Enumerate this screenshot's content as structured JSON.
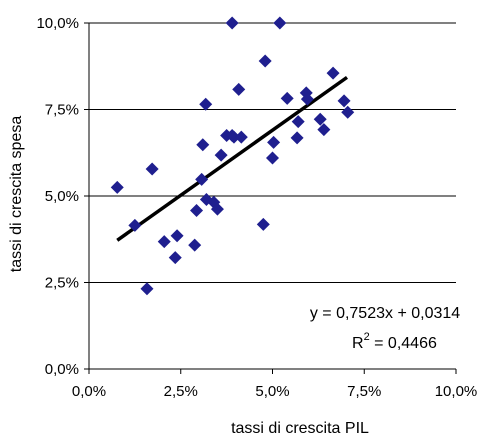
{
  "chart_data": {
    "type": "scatter",
    "xlabel": "tassi di crescita PIL",
    "ylabel": "tassi di crescita spesa",
    "xlim": [
      0,
      0.1
    ],
    "ylim": [
      0,
      0.1
    ],
    "x_ticks": [
      0,
      0.025,
      0.05,
      0.075,
      0.1
    ],
    "y_ticks": [
      0,
      0.025,
      0.05,
      0.075,
      0.1
    ],
    "x_tick_labels": [
      "0,0%",
      "2,5%",
      "5,0%",
      "7,5%",
      "10,0%"
    ],
    "y_tick_labels": [
      "0,0%",
      "2,5%",
      "5,0%",
      "7,5%",
      "10,0%"
    ],
    "grid": "horizontal",
    "marker_color": "#1f1f8f",
    "trendline_color": "#000000",
    "series": [
      {
        "x": [
          0.0077,
          0.0125,
          0.0158,
          0.0172,
          0.0205,
          0.0235,
          0.024,
          0.0288,
          0.0293,
          0.0307,
          0.031,
          0.0318,
          0.032,
          0.034,
          0.035,
          0.036,
          0.0375,
          0.039,
          0.039,
          0.0395,
          0.0408,
          0.0415,
          0.0475,
          0.048,
          0.05,
          0.0503,
          0.052,
          0.054,
          0.0567,
          0.057,
          0.0592,
          0.0595,
          0.063,
          0.064,
          0.0665,
          0.0695,
          0.0705
        ],
        "y": [
          0.0525,
          0.0415,
          0.0232,
          0.0578,
          0.0368,
          0.0322,
          0.0385,
          0.0358,
          0.0458,
          0.0548,
          0.0648,
          0.0765,
          0.049,
          0.0482,
          0.0462,
          0.0618,
          0.0675,
          0.1,
          0.0675,
          0.067,
          0.0808,
          0.067,
          0.0418,
          0.089,
          0.061,
          0.0655,
          0.1,
          0.0782,
          0.0668,
          0.0715,
          0.0798,
          0.078,
          0.0722,
          0.0692,
          0.0855,
          0.0775,
          0.0742
        ]
      }
    ],
    "trendline": {
      "slope": 0.7523,
      "intercept": 0.0314,
      "x_range": [
        0.0077,
        0.0703
      ]
    },
    "annotations": {
      "equation": "y = 0,7523x + 0,0314",
      "r2_base": "R",
      "r2_exp": "2",
      "r2_value": " = 0,4466"
    }
  }
}
